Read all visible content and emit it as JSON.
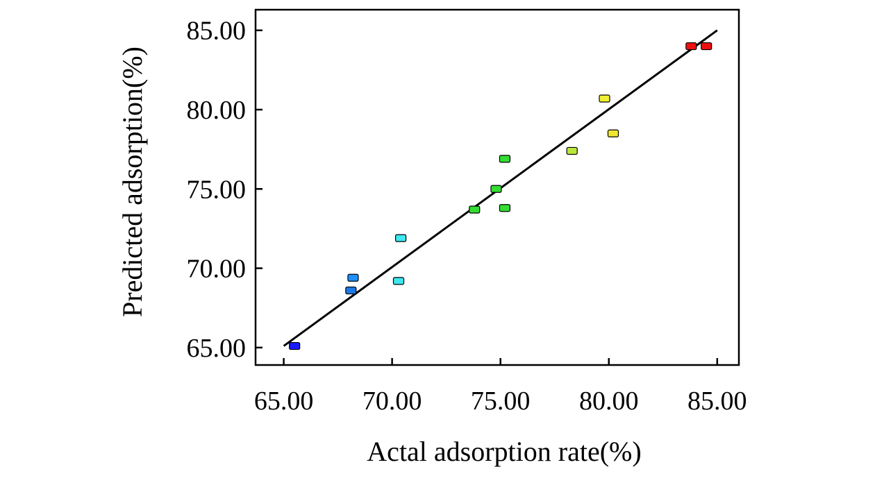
{
  "chart_data": {
    "type": "scatter",
    "title": "",
    "xlabel": "Actal adsorption rate(%)",
    "ylabel": "Predicted adsorption(%)",
    "xlim": [
      63.7,
      86.0
    ],
    "ylim": [
      63.9,
      86.3
    ],
    "xticks": [
      "65.00",
      "70.00",
      "75.00",
      "80.00",
      "85.00"
    ],
    "yticks": [
      "65.00",
      "70.00",
      "75.00",
      "80.00",
      "85.00"
    ],
    "xtick_values": [
      65,
      70,
      75,
      80,
      85
    ],
    "ytick_values": [
      65,
      70,
      75,
      80,
      85
    ],
    "fit_line": {
      "x": [
        65.0,
        85.0
      ],
      "y": [
        65.1,
        85.0
      ]
    },
    "points": [
      {
        "x": 65.5,
        "y": 65.1,
        "color": "#1a1aff"
      },
      {
        "x": 68.1,
        "y": 68.6,
        "color": "#1e78e6"
      },
      {
        "x": 68.2,
        "y": 69.4,
        "color": "#1e90ff"
      },
      {
        "x": 70.3,
        "y": 69.2,
        "color": "#3ee8f0"
      },
      {
        "x": 70.4,
        "y": 71.9,
        "color": "#3ee8f0"
      },
      {
        "x": 73.8,
        "y": 73.7,
        "color": "#33dd33"
      },
      {
        "x": 74.8,
        "y": 75.0,
        "color": "#33dd33"
      },
      {
        "x": 75.2,
        "y": 73.8,
        "color": "#33dd33"
      },
      {
        "x": 75.2,
        "y": 76.9,
        "color": "#33dd33"
      },
      {
        "x": 78.3,
        "y": 77.4,
        "color": "#b8e63c"
      },
      {
        "x": 79.8,
        "y": 80.7,
        "color": "#f0f032"
      },
      {
        "x": 80.2,
        "y": 78.5,
        "color": "#f0e632"
      },
      {
        "x": 83.8,
        "y": 84.0,
        "color": "#ee1111"
      },
      {
        "x": 84.5,
        "y": 84.0,
        "color": "#ee1111"
      }
    ]
  }
}
